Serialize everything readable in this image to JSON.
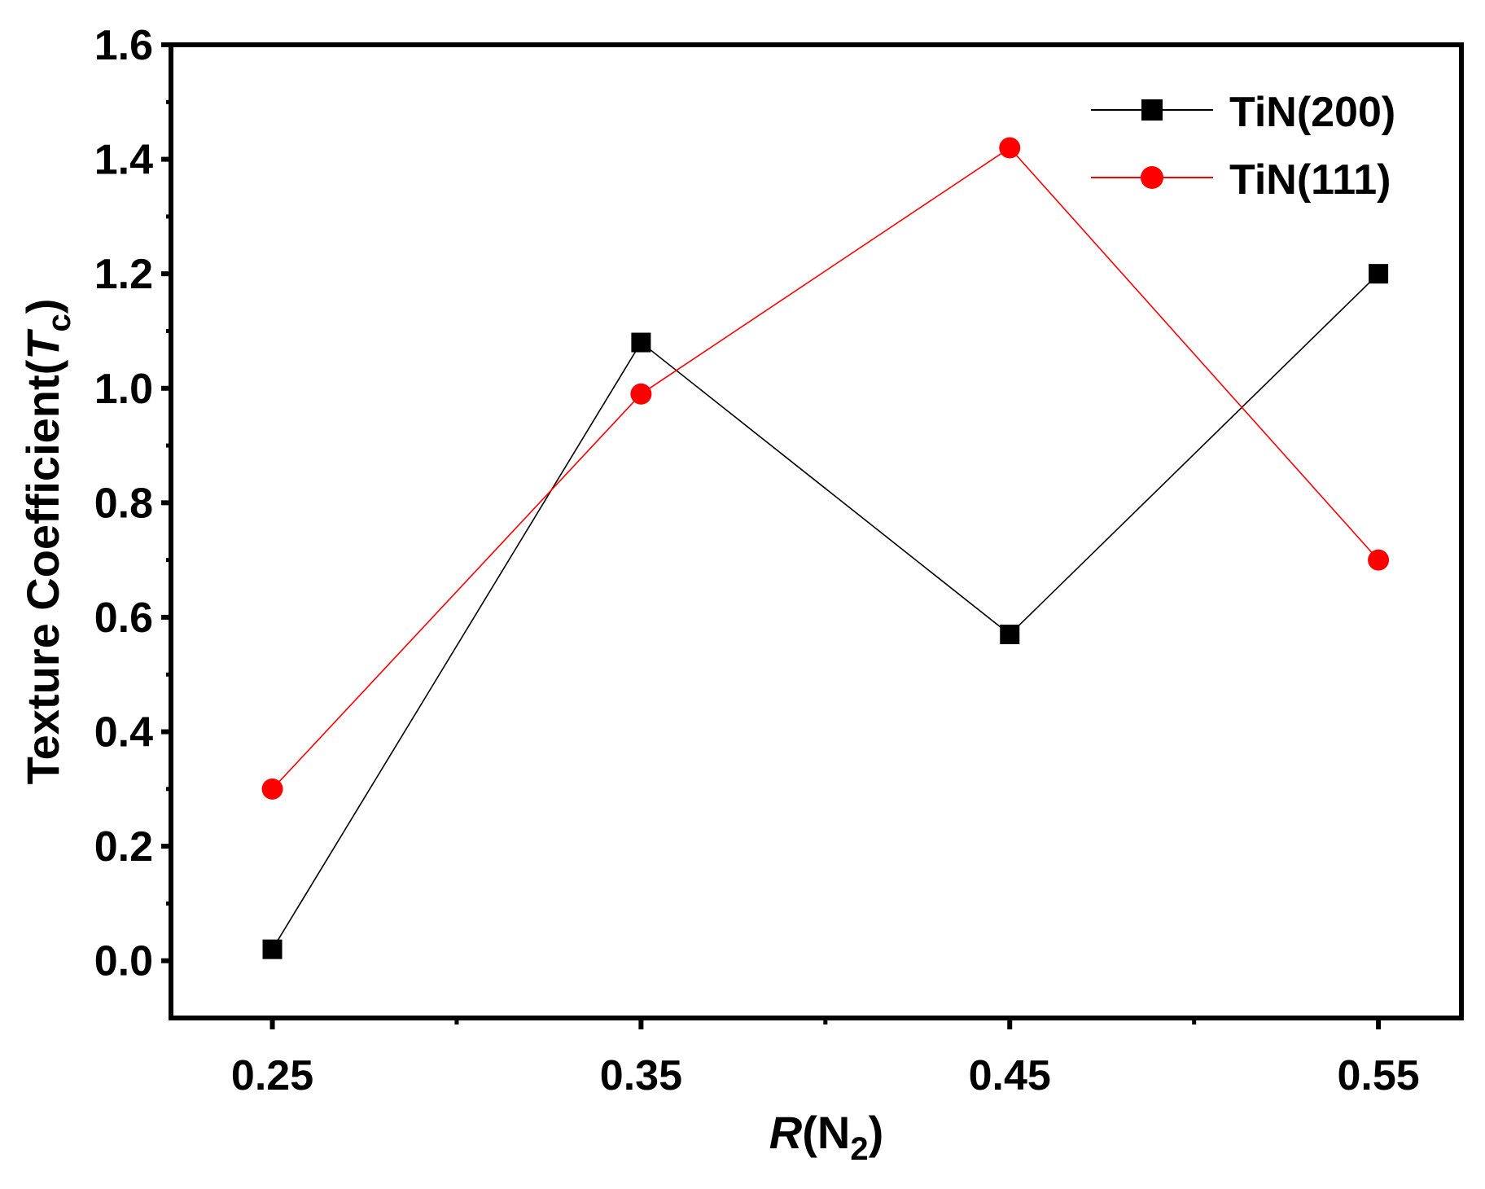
{
  "chart_data": {
    "type": "line",
    "x": [
      0.25,
      0.35,
      0.45,
      0.55
    ],
    "x_tick_labels": [
      "0.25",
      "0.35",
      "0.45",
      "0.55"
    ],
    "y_tick_labels": [
      "0.0",
      "0.2",
      "0.4",
      "0.6",
      "0.8",
      "1.0",
      "1.2",
      "1.4",
      "1.6"
    ],
    "y_ticks": [
      0.0,
      0.2,
      0.4,
      0.6,
      0.8,
      1.0,
      1.2,
      1.4,
      1.6
    ],
    "xlim": [
      0.2225,
      0.5725
    ],
    "ylim": [
      -0.1,
      1.6
    ],
    "xlabel": {
      "italic": "R",
      "main": "(N",
      "sub": "2",
      "close": ")"
    },
    "ylabel": {
      "main": "Texture Coefficient(",
      "italic": "T",
      "sub": "c",
      "close": ")"
    },
    "legend_position": "top-right",
    "series": [
      {
        "name": "TiN(200)",
        "color": "#000000",
        "marker": "square",
        "values": [
          0.02,
          1.08,
          0.57,
          1.2
        ]
      },
      {
        "name": "TiN(111)",
        "color": "#ff0000",
        "marker": "circle",
        "values": [
          0.3,
          0.99,
          1.42,
          0.7
        ]
      }
    ]
  }
}
